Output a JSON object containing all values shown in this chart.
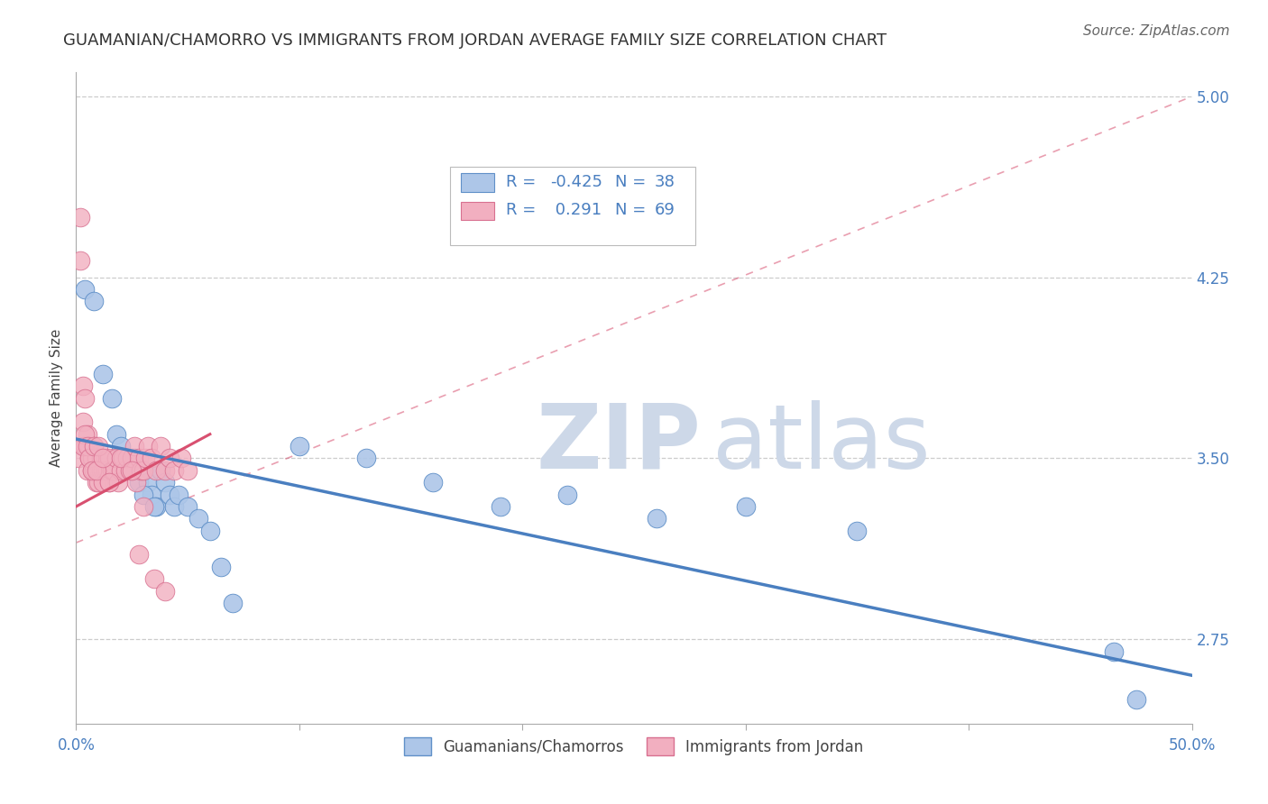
{
  "title": "GUAMANIAN/CHAMORRO VS IMMIGRANTS FROM JORDAN AVERAGE FAMILY SIZE CORRELATION CHART",
  "source": "Source: ZipAtlas.com",
  "ylabel": "Average Family Size",
  "xlim": [
    0.0,
    0.5
  ],
  "ylim": [
    2.4,
    5.1
  ],
  "xticks": [
    0.0,
    0.1,
    0.2,
    0.3,
    0.4,
    0.5
  ],
  "xticklabels": [
    "0.0%",
    "",
    "",
    "",
    "",
    "50.0%"
  ],
  "yticks": [
    2.75,
    3.5,
    4.25,
    5.0
  ],
  "yticklabels": [
    "2.75",
    "3.50",
    "4.25",
    "5.00"
  ],
  "blue_R": -0.425,
  "blue_N": 38,
  "pink_R": 0.291,
  "pink_N": 69,
  "blue_color": "#adc6e8",
  "pink_color": "#f2afc0",
  "blue_edge_color": "#6090c8",
  "pink_edge_color": "#d87090",
  "blue_line_color": "#4a7fc0",
  "pink_line_color": "#d85070",
  "legend_label_blue": "Guamanians/Chamorros",
  "legend_label_pink": "Immigrants from Jordan",
  "blue_scatter_x": [
    0.004,
    0.008,
    0.012,
    0.016,
    0.018,
    0.02,
    0.022,
    0.024,
    0.026,
    0.028,
    0.03,
    0.032,
    0.034,
    0.036,
    0.038,
    0.04,
    0.042,
    0.044,
    0.046,
    0.05,
    0.055,
    0.06,
    0.065,
    0.07,
    0.02,
    0.025,
    0.03,
    0.035,
    0.1,
    0.13,
    0.16,
    0.19,
    0.22,
    0.26,
    0.3,
    0.35,
    0.465,
    0.475
  ],
  "blue_scatter_y": [
    4.2,
    4.15,
    3.85,
    3.75,
    3.6,
    3.55,
    3.5,
    3.45,
    3.5,
    3.4,
    3.45,
    3.4,
    3.35,
    3.3,
    3.45,
    3.4,
    3.35,
    3.3,
    3.35,
    3.3,
    3.25,
    3.2,
    3.05,
    2.9,
    3.5,
    3.45,
    3.35,
    3.3,
    3.55,
    3.5,
    3.4,
    3.3,
    3.35,
    3.25,
    3.3,
    3.2,
    2.7,
    2.5
  ],
  "pink_scatter_x": [
    0.001,
    0.002,
    0.002,
    0.003,
    0.003,
    0.004,
    0.004,
    0.005,
    0.005,
    0.006,
    0.006,
    0.007,
    0.007,
    0.008,
    0.008,
    0.009,
    0.009,
    0.01,
    0.01,
    0.011,
    0.011,
    0.012,
    0.012,
    0.013,
    0.013,
    0.014,
    0.015,
    0.015,
    0.016,
    0.017,
    0.018,
    0.019,
    0.02,
    0.021,
    0.022,
    0.023,
    0.024,
    0.025,
    0.026,
    0.027,
    0.028,
    0.029,
    0.03,
    0.031,
    0.032,
    0.034,
    0.036,
    0.038,
    0.04,
    0.042,
    0.044,
    0.047,
    0.05,
    0.003,
    0.004,
    0.005,
    0.006,
    0.007,
    0.008,
    0.009,
    0.01,
    0.012,
    0.015,
    0.02,
    0.025,
    0.028,
    0.03,
    0.035,
    0.04
  ],
  "pink_scatter_y": [
    3.5,
    4.5,
    4.32,
    3.8,
    3.65,
    3.75,
    3.55,
    3.6,
    3.45,
    3.55,
    3.5,
    3.5,
    3.45,
    3.55,
    3.45,
    3.5,
    3.4,
    3.45,
    3.4,
    3.5,
    3.45,
    3.45,
    3.4,
    3.45,
    3.5,
    3.45,
    3.5,
    3.4,
    3.45,
    3.45,
    3.5,
    3.4,
    3.45,
    3.5,
    3.45,
    3.5,
    3.45,
    3.5,
    3.55,
    3.4,
    3.5,
    3.45,
    3.45,
    3.5,
    3.55,
    3.5,
    3.45,
    3.55,
    3.45,
    3.5,
    3.45,
    3.5,
    3.45,
    3.55,
    3.6,
    3.55,
    3.5,
    3.45,
    3.55,
    3.45,
    3.55,
    3.5,
    3.4,
    3.5,
    3.45,
    3.1,
    3.3,
    3.0,
    2.95
  ],
  "blue_line_x": [
    0.0,
    0.5
  ],
  "blue_line_y": [
    3.58,
    2.6
  ],
  "pink_solid_line_x": [
    0.0,
    0.06
  ],
  "pink_solid_line_y": [
    3.3,
    3.6
  ],
  "pink_dash_line_x": [
    0.0,
    0.5
  ],
  "pink_dash_line_y": [
    3.15,
    5.0
  ],
  "background_color": "#ffffff",
  "grid_color": "#cccccc",
  "watermark_zip": "ZIP",
  "watermark_atlas": "atlas",
  "watermark_color": "#cdd8e8",
  "title_fontsize": 13,
  "axis_label_fontsize": 11,
  "tick_fontsize": 12,
  "source_fontsize": 11
}
